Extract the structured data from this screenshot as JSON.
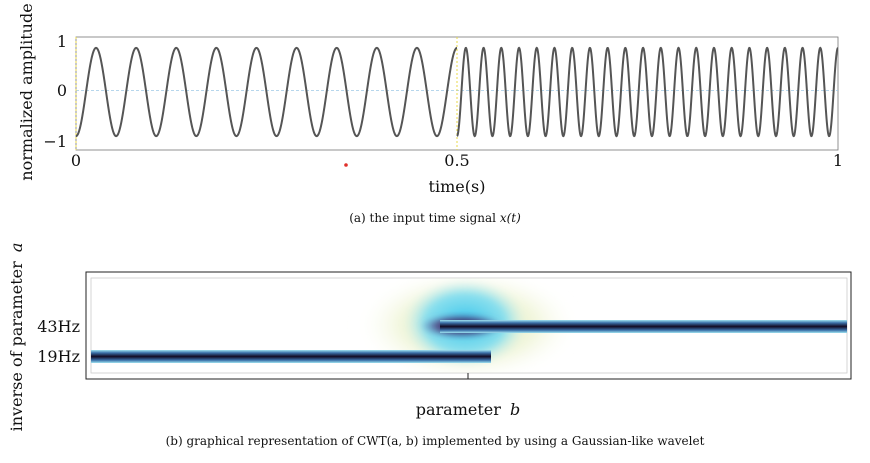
{
  "chart_data": [
    {
      "type": "line",
      "ylabel": "normalized amplitude",
      "xlabel": "time(s)",
      "xlim": [
        0,
        1
      ],
      "ylim": [
        -1,
        1
      ],
      "x_ticks": [
        "0",
        "0.5",
        "1"
      ],
      "y_ticks": [
        "1",
        "0",
        "−1"
      ],
      "series": [
        {
          "x_range": [
            0,
            0.5
          ],
          "frequency_hz": 19,
          "amplitude": 0.9
        },
        {
          "x_range": [
            0.5,
            1
          ],
          "frequency_hz": 43,
          "amplitude": 0.9
        }
      ],
      "colors": {
        "signal": "#555555",
        "zero_line": "#9ec9e6"
      },
      "caption": "(a)  the input time signal",
      "caption_math": "x(t)"
    },
    {
      "type": "heatmap",
      "xlabel": "parameter",
      "xlabel_var": "b",
      "ylabel": "inverse of parameter",
      "ylabel_var": "a",
      "y_ticks": [
        "43Hz",
        "19Hz"
      ],
      "bands": [
        {
          "label": "19Hz",
          "x_range": [
            0,
            0.5
          ]
        },
        {
          "label": "43Hz",
          "x_range": [
            0.5,
            1
          ]
        }
      ],
      "colors": {
        "ridge": "#1a0e2e",
        "halo": "#40c8f0",
        "fringe": "#e6eebe"
      },
      "caption_prefix": "(b)  graphical representation of",
      "caption_math": "CWT(a, b)",
      "caption_suffix": "implemented by using a Gaussian-like wavelet"
    }
  ]
}
